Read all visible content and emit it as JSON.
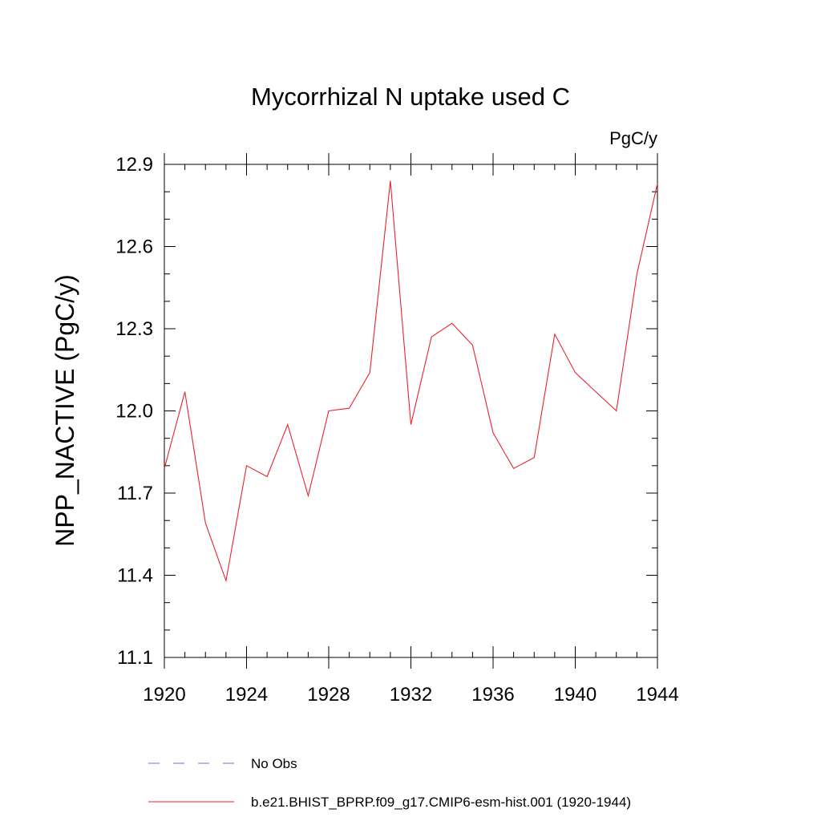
{
  "chart_data": {
    "type": "line",
    "title": "Mycorrhizal N uptake used C",
    "units_label": "PgC/y",
    "ylabel": "NPP_NACTIVE  (PgC/y)",
    "xlabel": "",
    "xlim": [
      1920,
      1944
    ],
    "ylim": [
      11.1,
      12.9
    ],
    "x_ticks": [
      1920,
      1924,
      1928,
      1932,
      1936,
      1940,
      1944
    ],
    "y_ticks": [
      "12.9",
      "12.6",
      "12.3",
      "12.0",
      "11.7",
      "11.4",
      "11.1"
    ],
    "series": [
      {
        "name": "b.e21.BHIST_BPRP.f09_g17.CMIP6-esm-hist.001 (1920-1944)",
        "color": "#e8232b",
        "x": [
          1920,
          1921,
          1922,
          1923,
          1924,
          1925,
          1926,
          1927,
          1928,
          1929,
          1930,
          1931,
          1932,
          1933,
          1934,
          1935,
          1936,
          1937,
          1938,
          1939,
          1940,
          1941,
          1942,
          1943,
          1944
        ],
        "values": [
          11.79,
          12.07,
          11.59,
          11.38,
          11.8,
          11.76,
          11.95,
          11.69,
          12.0,
          12.01,
          12.14,
          12.84,
          11.95,
          12.27,
          12.32,
          12.24,
          11.92,
          11.79,
          11.83,
          12.28,
          12.14,
          12.07,
          12.0,
          12.5,
          12.83
        ]
      }
    ],
    "legend": [
      {
        "label": "No Obs",
        "style": "dashed",
        "color": "#6f6fd0"
      },
      {
        "label": "b.e21.BHIST_BPRP.f09_g17.CMIP6-esm-hist.001 (1920-1944)",
        "style": "solid",
        "color": "#e8232b"
      }
    ],
    "legend_position": "bottom"
  }
}
